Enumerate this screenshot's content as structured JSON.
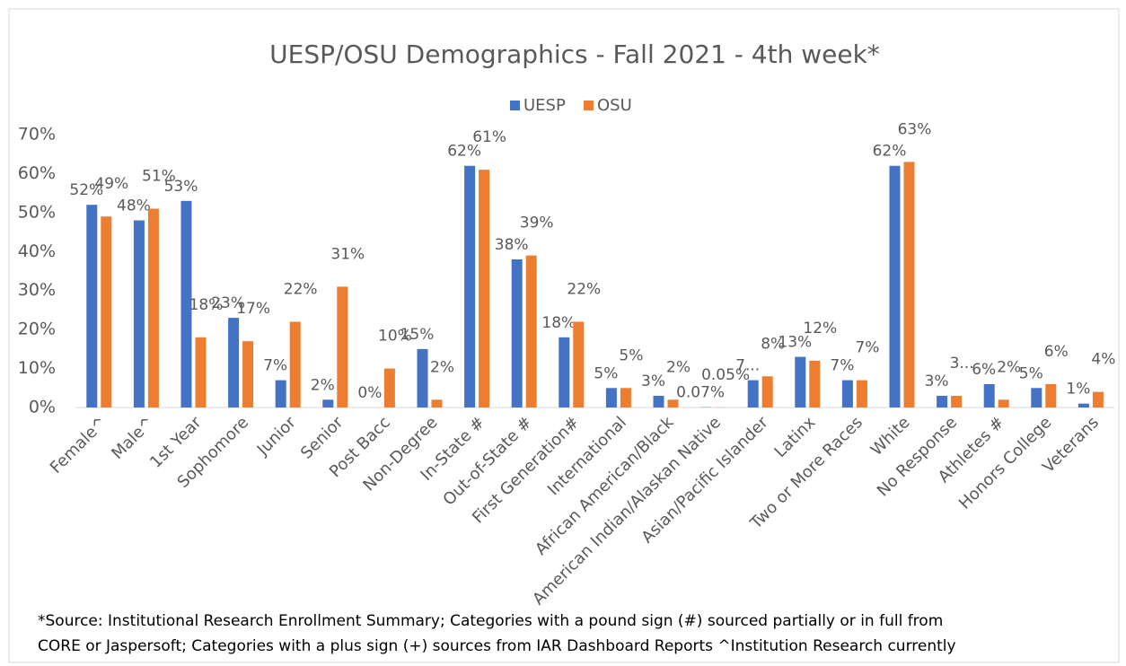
{
  "chart_data": {
    "type": "bar",
    "title": "UESP/OSU Demographics - Fall 2021 - 4th week*",
    "categories": [
      "Female^",
      "Male^",
      "1st Year",
      "Sophomore",
      "Junior",
      "Senior",
      "Post Bacc",
      "Non-Degree",
      "In-State #",
      "Out-of-State #",
      "First Generation#",
      "International",
      "African American/Black",
      "American Indian/Alaskan Native",
      "Asian/Pacific Islander",
      "Latinx",
      "Two or More Races",
      "White",
      "No Response",
      "Athletes #",
      "Honors College",
      "Veterans"
    ],
    "series": [
      {
        "name": "UESP",
        "color": "#4472c4",
        "values": [
          52,
          48,
          53,
          23,
          7,
          2,
          0,
          15,
          62,
          38,
          18,
          5,
          3,
          0.07,
          7,
          13,
          7,
          62,
          3,
          6,
          5,
          1
        ],
        "value_labels": [
          "52%",
          "48%",
          "53%",
          "23%",
          "7%",
          "2%",
          "0%",
          "15%",
          "62%",
          "38%",
          "18%",
          "5%",
          "3%",
          "0.07%",
          "7...",
          "13%",
          "7%",
          "62%",
          "3%",
          "6%",
          "5%",
          "1%"
        ]
      },
      {
        "name": "OSU",
        "color": "#ed7d31",
        "values": [
          49,
          51,
          18,
          17,
          22,
          31,
          10,
          2,
          61,
          39,
          22,
          5,
          2,
          0.05,
          8,
          12,
          7,
          63,
          3,
          2,
          6,
          4
        ],
        "value_labels": [
          "49%",
          "51%",
          "18%",
          "17%",
          "22%",
          "31%",
          "10%",
          "2%",
          "61%",
          "39%",
          "22%",
          "5%",
          "2%",
          "0.05%",
          "8%",
          "12%",
          "7%",
          "63%",
          "3...",
          "2%",
          "6%",
          "4%"
        ]
      }
    ],
    "ylim": [
      0,
      70
    ],
    "yticks": [
      {
        "value": 0,
        "label": "0%"
      },
      {
        "value": 10,
        "label": "10%"
      },
      {
        "value": 20,
        "label": "20%"
      },
      {
        "value": 30,
        "label": "30%"
      },
      {
        "value": 40,
        "label": "40%"
      },
      {
        "value": 50,
        "label": "50%"
      },
      {
        "value": 60,
        "label": "60%"
      },
      {
        "value": 70,
        "label": "70%"
      }
    ],
    "grid": false,
    "legend": "top",
    "footnote": [
      "*Source: Institutional Research Enrollment Summary; Categories with a pound sign (#) sourced partially or in full from",
      "CORE or Jaspersoft; Categories with a plus sign (+) sources from IAR Dashboard Reports  ^Institution Research currently"
    ]
  }
}
